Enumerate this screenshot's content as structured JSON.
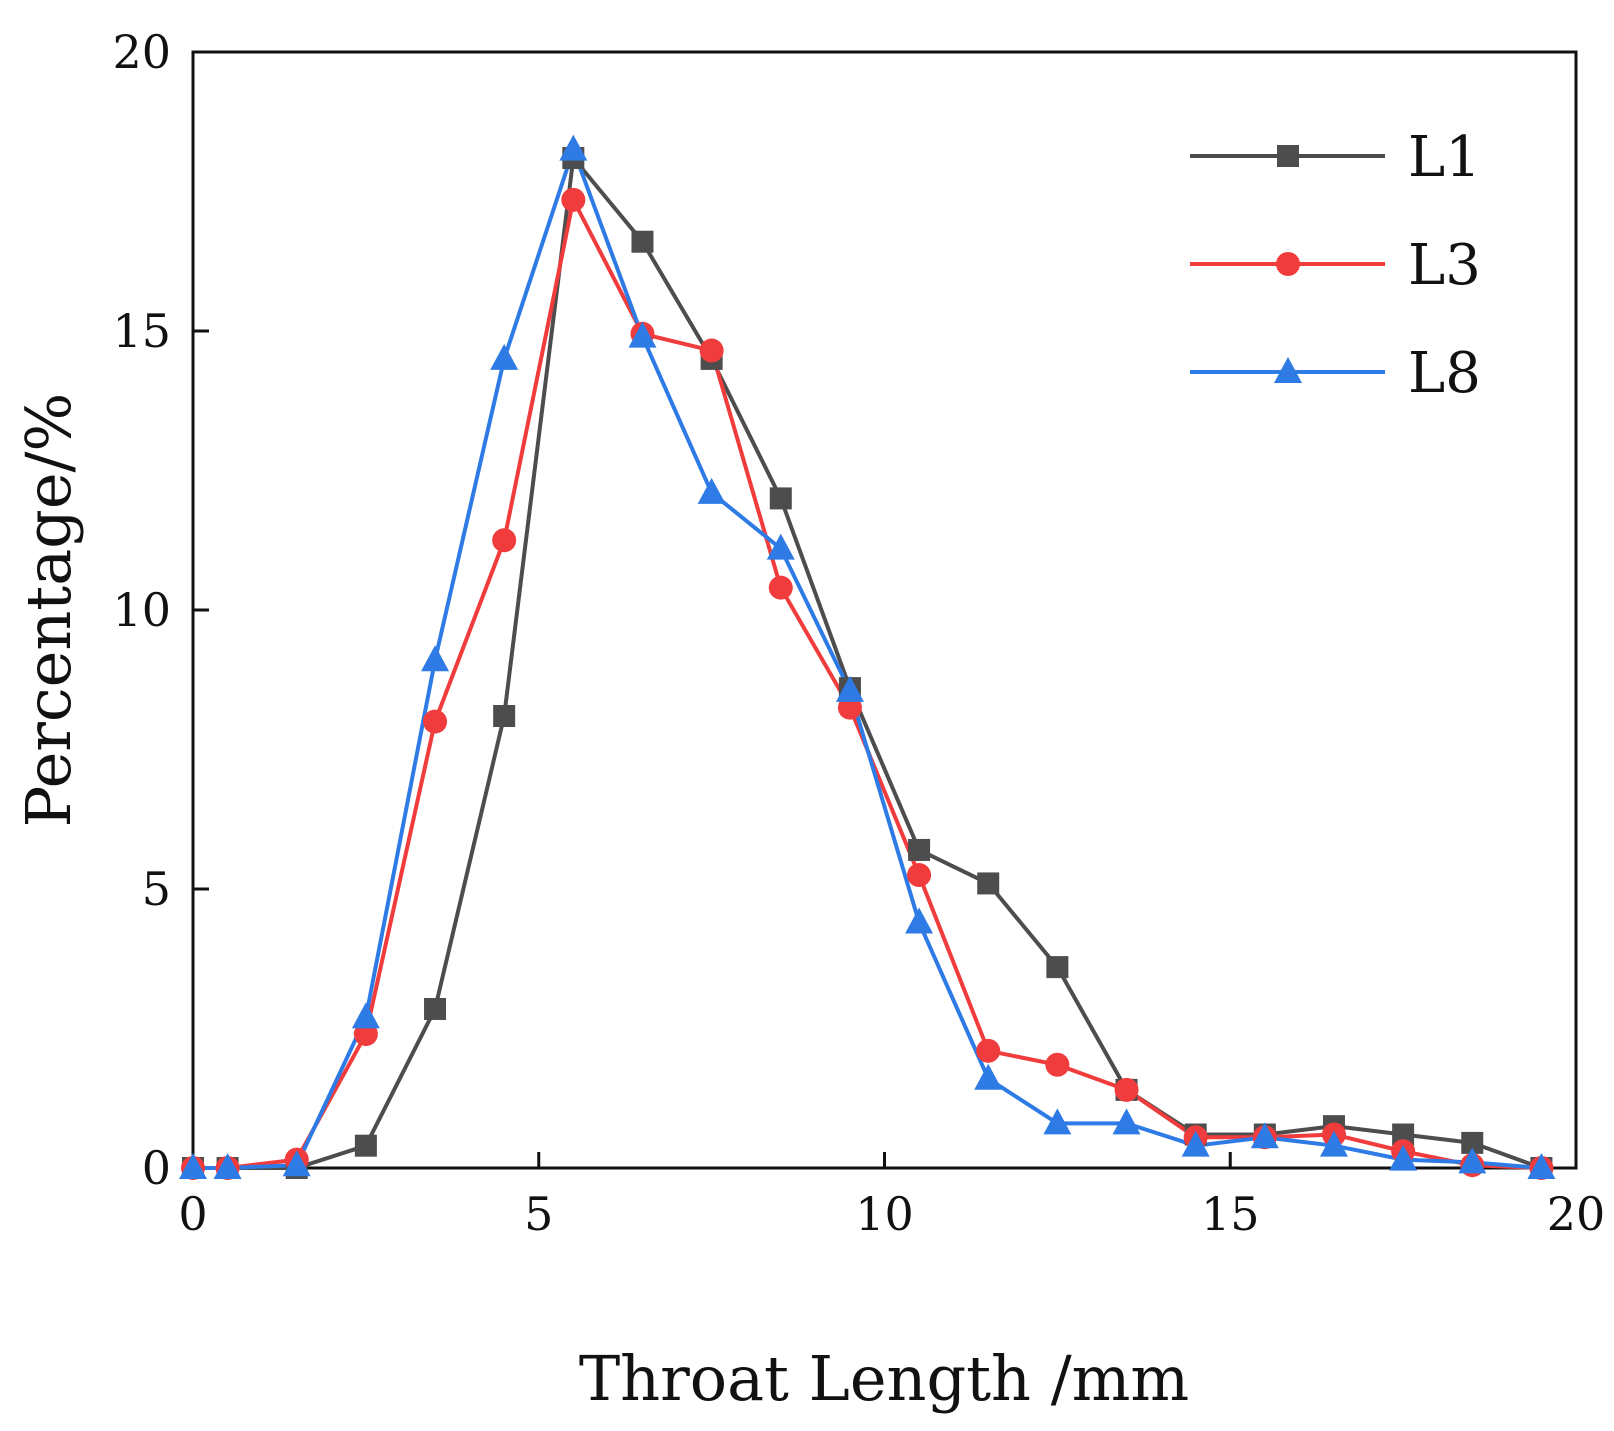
{
  "chart_data": {
    "type": "line",
    "title": "",
    "xlabel": "Throat Length /mm",
    "ylabel": "Percentage/%",
    "xlim": [
      0,
      20
    ],
    "ylim": [
      0,
      20
    ],
    "xticks": [
      "0",
      "5",
      "10",
      "15",
      "20"
    ],
    "yticks": [
      "0",
      "5",
      "10",
      "15",
      "20"
    ],
    "grid": false,
    "legend_position": "top-right",
    "x": [
      0,
      0.5,
      1.5,
      2.5,
      3.5,
      4.5,
      5.5,
      6.5,
      7.5,
      8.5,
      9.5,
      10.5,
      11.5,
      12.5,
      13.5,
      14.5,
      15.5,
      16.5,
      17.5,
      18.5,
      19.5
    ],
    "series": [
      {
        "name": "L1",
        "color": "#4d4d4d",
        "marker": "square",
        "values": [
          0,
          0,
          0,
          0.4,
          2.85,
          8.1,
          18.1,
          16.6,
          14.5,
          12.0,
          8.6,
          5.7,
          5.1,
          3.6,
          1.4,
          0.6,
          0.6,
          0.75,
          0.6,
          0.45,
          0
        ]
      },
      {
        "name": "L3",
        "color": "#f03c3c",
        "marker": "circle",
        "values": [
          0,
          0,
          0.15,
          2.4,
          8.0,
          11.25,
          17.35,
          14.95,
          14.65,
          10.4,
          8.25,
          5.25,
          2.1,
          1.85,
          1.4,
          0.55,
          0.55,
          0.6,
          0.3,
          0.05,
          0
        ]
      },
      {
        "name": "L8",
        "color": "#2e7be6",
        "marker": "triangle",
        "values": [
          0,
          0,
          0.05,
          2.7,
          9.1,
          14.5,
          18.25,
          14.9,
          12.1,
          11.1,
          8.55,
          4.4,
          1.6,
          0.8,
          0.8,
          0.4,
          0.55,
          0.4,
          0.15,
          0.1,
          0
        ]
      }
    ]
  }
}
